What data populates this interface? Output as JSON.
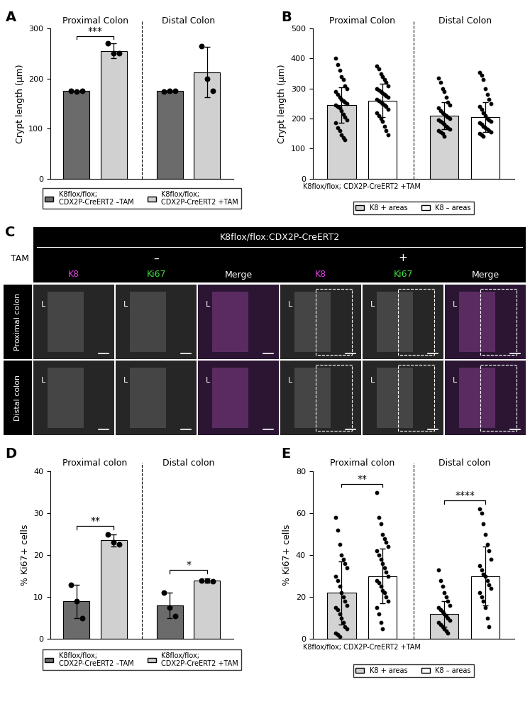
{
  "chart_data": [
    {
      "panel": "A",
      "type": "bar",
      "ylabel": "Crypt length (µm)",
      "sections": [
        "Proximal Colon",
        "Distal Colon"
      ],
      "ylim": [
        0,
        300
      ],
      "yticks": [
        0,
        100,
        200,
        300
      ],
      "tick_labels": "y",
      "legend": "upper center",
      "series": [
        {
          "name": "K8flox/flox;\nCDX2P-CreERT2 –TAM",
          "color": "#6b6b6b",
          "values": [
            175,
            175
          ],
          "errors": [
            1,
            2
          ],
          "points": [
            [
              175,
              174,
              175
            ],
            [
              174,
              176,
              175
            ]
          ]
        },
        {
          "name": "K8flox/flox;\nCDX2P-CreERT2 +TAM",
          "color": "#d0d0d0",
          "values": [
            255,
            213
          ],
          "errors": [
            15,
            50
          ],
          "points": [
            [
              270,
              250,
              250
            ],
            [
              265,
              200,
              175
            ]
          ]
        }
      ],
      "significance": [
        {
          "section": "Proximal Colon",
          "label": "***"
        }
      ]
    },
    {
      "panel": "B",
      "type": "bar",
      "ylabel": "Crypt length (µm)",
      "xlabel": "K8flox/flox; CDX2P-CreERT2 +TAM",
      "sections": [
        "Proximal Colon",
        "Distal Colon"
      ],
      "ylim": [
        0,
        500
      ],
      "yticks": [
        0,
        100,
        200,
        300,
        400,
        500
      ],
      "tick_labels": "y",
      "legend": "upper center",
      "series": [
        {
          "name": "K8 + areas",
          "color": "#d3d3d3",
          "values": [
            245,
            210
          ],
          "errors": [
            60,
            45
          ],
          "points": [
            [
              400,
              380,
              360,
              340,
              330,
              310,
              300,
              290,
              280,
              270,
              265,
              260,
              255,
              250,
              245,
              240,
              235,
              225,
              215,
              205,
              195,
              185,
              170,
              160,
              145,
              135,
              130
            ],
            [
              335,
              320,
              300,
              290,
              270,
              255,
              245,
              235,
              225,
              220,
              215,
              210,
              205,
              200,
              195,
              190,
              185,
              180,
              175,
              170,
              165,
              160,
              155,
              150,
              140
            ]
          ]
        },
        {
          "name": "K8 – areas",
          "color": "#ffffff",
          "values": [
            260,
            205
          ],
          "errors": [
            55,
            50
          ],
          "points": [
            [
              375,
              365,
              350,
              340,
              330,
              320,
              310,
              300,
              295,
              290,
              285,
              280,
              275,
              270,
              265,
              260,
              255,
              250,
              245,
              240,
              230,
              220,
              210,
              200,
              190,
              175,
              160,
              145
            ],
            [
              355,
              345,
              330,
              300,
              280,
              265,
              250,
              240,
              230,
              220,
              210,
              200,
              195,
              190,
              185,
              180,
              175,
              170,
              165,
              160,
              155,
              150,
              145,
              140
            ]
          ]
        }
      ],
      "significance": []
    },
    {
      "panel": "D",
      "type": "bar",
      "ylabel": "% Ki67+ cells",
      "sections": [
        "Proximal colon",
        "Distal colon"
      ],
      "ylim": [
        0,
        40
      ],
      "yticks": [
        0,
        10,
        20,
        30,
        40
      ],
      "tick_labels": "y",
      "legend": "upper center",
      "series": [
        {
          "name": "K8flox/flox;\nCDX2P-CreERT2 –TAM",
          "color": "#6b6b6b",
          "values": [
            9,
            8
          ],
          "errors": [
            4,
            3
          ],
          "points": [
            [
              13,
              9,
              5
            ],
            [
              11,
              7.5,
              5.5
            ]
          ]
        },
        {
          "name": "K8flox/flox;\nCDX2P-CreERT2 +TAM",
          "color": "#d0d0d0",
          "values": [
            23.5,
            14
          ],
          "errors": [
            1.5,
            0.5
          ],
          "points": [
            [
              25,
              23,
              22.5
            ],
            [
              14,
              14,
              13.8
            ]
          ]
        }
      ],
      "significance": [
        {
          "section": "Proximal colon",
          "label": "**"
        },
        {
          "section": "Distal colon",
          "label": "*"
        }
      ]
    },
    {
      "panel": "E",
      "type": "bar",
      "ylabel": "% Ki67+ cells",
      "xlabel": "K8flox/flox; CDX2P-CreERT2 +TAM",
      "sections": [
        "Proximal colon",
        "Distal colon"
      ],
      "ylim": [
        0,
        80
      ],
      "yticks": [
        0,
        20,
        40,
        60,
        80
      ],
      "tick_labels": "y",
      "legend": "upper center",
      "series": [
        {
          "name": "K8 + areas",
          "color": "#d3d3d3",
          "values": [
            22,
            12
          ],
          "errors": [
            15,
            6
          ],
          "points": [
            [
              58,
              52,
              45,
              40,
              38,
              36,
              34,
              30,
              28,
              25,
              22,
              20,
              18,
              16,
              15,
              14,
              12,
              10,
              8,
              6,
              5,
              3,
              2,
              1
            ],
            [
              33,
              28,
              25,
              22,
              20,
              18,
              16,
              15,
              14,
              13,
              12,
              11,
              10,
              9,
              8,
              7,
              6,
              5,
              4,
              3
            ]
          ]
        },
        {
          "name": "K8 – areas",
          "color": "#ffffff",
          "values": [
            30,
            30
          ],
          "errors": [
            13,
            14
          ],
          "points": [
            [
              70,
              58,
              55,
              50,
              48,
              46,
              44,
              42,
              40,
              38,
              36,
              34,
              32,
              30,
              28,
              27,
              25,
              23,
              22,
              20,
              18,
              15,
              12,
              8,
              5
            ],
            [
              62,
              60,
              55,
              50,
              45,
              42,
              38,
              35,
              33,
              31,
              30,
              28,
              26,
              24,
              22,
              20,
              18,
              15,
              10,
              6
            ]
          ]
        }
      ],
      "significance": [
        {
          "section": "Proximal colon",
          "label": "**"
        },
        {
          "section": "Distal colon",
          "label": "****"
        }
      ]
    }
  ],
  "image_panel": {
    "panel": "C",
    "title": "K8flox/flox:CDX2P-CreERT2",
    "treatment_label": "TAM",
    "conditions": [
      "–",
      "+"
    ],
    "channels": [
      "K8",
      "Ki67",
      "Merge"
    ],
    "rows": [
      "Proximal colon",
      "Distal colon"
    ],
    "lumen_label": "L"
  }
}
